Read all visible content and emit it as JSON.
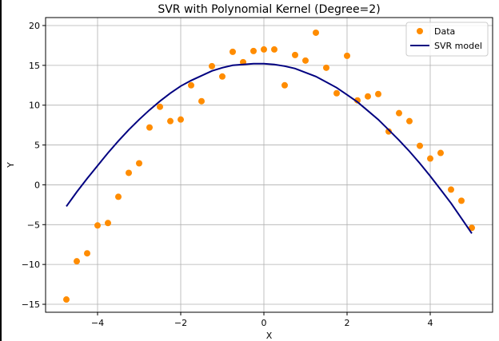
{
  "chart_data": {
    "type": "scatter",
    "title": "SVR with Polynomial Kernel (Degree=2)",
    "xlabel": "X",
    "ylabel": "Y",
    "xlim": [
      -5.25,
      5.5
    ],
    "ylim": [
      -16,
      21
    ],
    "xticks": [
      -4,
      -2,
      0,
      2,
      4
    ],
    "yticks": [
      -15,
      -10,
      -5,
      0,
      5,
      10,
      15,
      20
    ],
    "xtick_labels": [
      "−4",
      "−2",
      "0",
      "2",
      "4"
    ],
    "ytick_labels": [
      "−15",
      "−10",
      "−5",
      "0",
      "5",
      "10",
      "15",
      "20"
    ],
    "grid": true,
    "legend_position": "top-right",
    "series": [
      {
        "name": "Data",
        "kind": "scatter",
        "color": "#ff8c00",
        "x": [
          -4.75,
          -4.5,
          -4.25,
          -4.0,
          -3.75,
          -3.5,
          -3.25,
          -3.0,
          -2.75,
          -2.5,
          -2.25,
          -2.0,
          -1.75,
          -1.5,
          -1.25,
          -1.0,
          -0.75,
          -0.5,
          -0.25,
          0.0,
          0.25,
          0.5,
          0.75,
          1.0,
          1.25,
          1.5,
          1.75,
          2.0,
          2.25,
          2.5,
          2.75,
          3.0,
          3.25,
          3.5,
          3.75,
          4.0,
          4.25,
          4.5,
          4.75,
          5.0
        ],
        "y": [
          -14.4,
          -9.6,
          -8.6,
          -5.1,
          -4.8,
          -1.5,
          1.5,
          2.7,
          7.2,
          9.8,
          8.0,
          8.2,
          12.5,
          10.5,
          14.9,
          13.6,
          16.7,
          15.4,
          16.8,
          17.0,
          17.0,
          12.5,
          16.3,
          15.6,
          19.1,
          14.7,
          11.5,
          16.2,
          10.6,
          11.1,
          11.4,
          6.7,
          9.0,
          8.0,
          4.9,
          3.3,
          4.0,
          -0.6,
          -2.0,
          -5.4
        ]
      },
      {
        "name": "SVR model",
        "kind": "line",
        "color": "#000080",
        "x": [
          -4.75,
          -4.5,
          -4.25,
          -4.0,
          -3.75,
          -3.5,
          -3.25,
          -3.0,
          -2.75,
          -2.5,
          -2.25,
          -2.0,
          -1.75,
          -1.5,
          -1.25,
          -1.0,
          -0.75,
          -0.5,
          -0.25,
          0.0,
          0.25,
          0.5,
          0.75,
          1.0,
          1.25,
          1.5,
          1.75,
          2.0,
          2.25,
          2.5,
          2.75,
          3.0,
          3.25,
          3.5,
          3.75,
          4.0,
          4.25,
          4.5,
          4.75,
          5.0
        ],
        "y": [
          -2.7,
          -0.9,
          0.8,
          2.4,
          4.0,
          5.5,
          6.9,
          8.2,
          9.4,
          10.5,
          11.5,
          12.4,
          13.1,
          13.7,
          14.3,
          14.7,
          15.0,
          15.1,
          15.2,
          15.2,
          15.1,
          14.9,
          14.6,
          14.1,
          13.6,
          12.9,
          12.2,
          11.3,
          10.4,
          9.3,
          8.2,
          6.9,
          5.6,
          4.2,
          2.7,
          1.1,
          -0.6,
          -2.3,
          -4.2,
          -6.1
        ]
      }
    ]
  }
}
